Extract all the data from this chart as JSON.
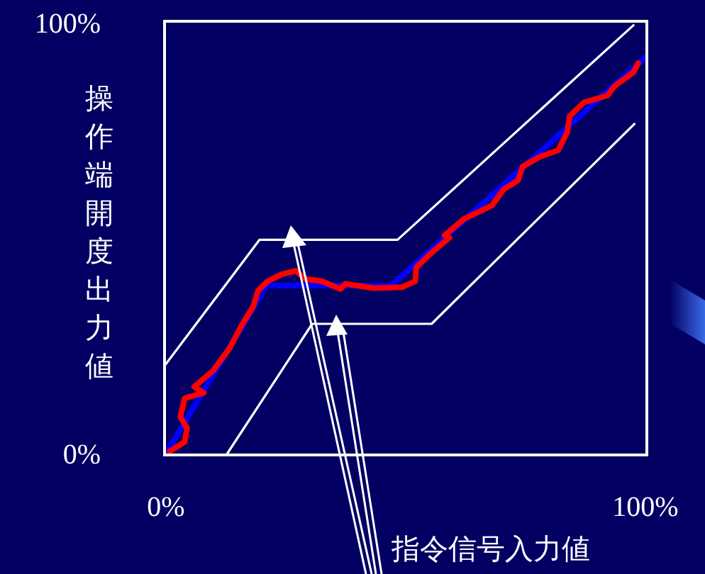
{
  "chart_data": {
    "type": "line",
    "xlabel": "指令信号入力値",
    "ylabel": "操作端開度出力値",
    "xlim": [
      0,
      100
    ],
    "ylim": [
      0,
      100
    ],
    "xticks": [
      {
        "value": 0,
        "label": "0%"
      },
      {
        "value": 100,
        "label": "100%"
      }
    ],
    "yticks": [
      {
        "value": 0,
        "label": "0%"
      },
      {
        "value": 100,
        "label": "100%"
      }
    ],
    "legend": false,
    "line_style": "solid",
    "marker": "none",
    "series": [
      {
        "color": "#ffffff",
        "x": [
          0,
          19.5,
          48.3,
          97.5
        ],
        "values": [
          20.8,
          49.6,
          49.6,
          99.4
        ]
      },
      {
        "color": "#ffffff",
        "x": [
          12.8,
          30.5,
          55.4,
          97.7
        ],
        "values": [
          0,
          30.1,
          30.1,
          76.5
        ]
      },
      {
        "color": "#0000ff",
        "x": [
          0,
          21,
          47,
          100
        ],
        "values": [
          0,
          39,
          39,
          92
        ]
      },
      {
        "color": "#ff0000",
        "x": [
          0.8,
          3.9,
          4.4,
          3.0,
          3.9,
          7.9,
          5.9,
          9.8,
          13.3,
          15.8,
          18.2,
          19.2,
          21.2,
          24.1,
          27.1,
          29.1,
          32.5,
          36.4,
          37.4,
          43.3,
          49.2,
          52.0,
          52.2,
          55.2,
          59.1,
          58.1,
          62.1,
          68.0,
          70.4,
          73.4,
          74.4,
          77.8,
          81.8,
          83.7,
          84.2,
          87.2,
          92.1,
          93.6,
          97.5,
          98.5
        ],
        "values": [
          0.5,
          2.7,
          5.9,
          8.5,
          12.8,
          14.1,
          15.5,
          19.2,
          24.5,
          29.8,
          34.1,
          37.8,
          40.0,
          41.6,
          42.4,
          40.5,
          40.0,
          38.2,
          39.4,
          38.4,
          38.6,
          40.0,
          43.2,
          46.4,
          50.1,
          50.6,
          54.4,
          57.6,
          61.3,
          63.4,
          66.6,
          68.8,
          70.4,
          74.6,
          78.3,
          81.5,
          83.1,
          85.3,
          88.5,
          90.6
        ]
      }
    ]
  }
}
